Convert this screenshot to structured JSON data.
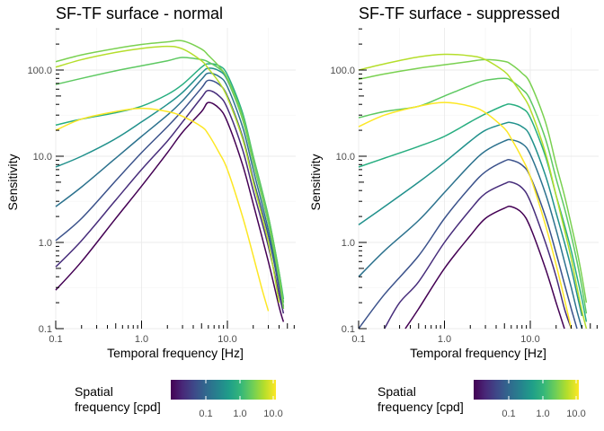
{
  "chart_data": [
    {
      "type": "line",
      "title": "SF-TF surface - normal",
      "xlabel": "Temporal frequency [Hz]",
      "ylabel": "Sensitivity",
      "x_scale": "log",
      "y_scale": "log",
      "xlim": [
        0.1,
        60
      ],
      "ylim": [
        0.1,
        320
      ],
      "x_ticks": [
        "0.1",
        "1.0",
        "10.0"
      ],
      "y_ticks": [
        "0.1",
        "1.0",
        "10.0",
        "100.0"
      ],
      "grid": true,
      "series": [
        {
          "spatial_frequency_cpd": 0.02,
          "color": "#440154",
          "x": [
            0.1,
            0.2,
            0.5,
            1,
            2,
            3,
            5,
            6,
            8,
            10,
            15,
            20,
            30,
            40,
            45
          ],
          "y": [
            0.28,
            0.6,
            1.9,
            4.5,
            11,
            19,
            33,
            42,
            36,
            25,
            8,
            2.8,
            0.6,
            0.18,
            0.12
          ]
        },
        {
          "spatial_frequency_cpd": 0.04,
          "color": "#472d7b",
          "x": [
            0.1,
            0.2,
            0.5,
            1,
            2,
            3,
            5,
            6,
            8,
            10,
            15,
            20,
            30,
            40,
            45
          ],
          "y": [
            0.52,
            1.05,
            3.1,
            7,
            15,
            25,
            48,
            58,
            50,
            36,
            12,
            4,
            0.9,
            0.25,
            0.15
          ]
        },
        {
          "spatial_frequency_cpd": 0.07,
          "color": "#3b528b",
          "x": [
            0.1,
            0.2,
            0.5,
            1,
            2,
            3,
            5,
            6,
            8,
            10,
            15,
            20,
            30,
            40,
            45
          ],
          "y": [
            1.05,
            1.9,
            5.2,
            11,
            22,
            34,
            62,
            76,
            68,
            50,
            17,
            5.5,
            1.2,
            0.3,
            0.17
          ]
        },
        {
          "spatial_frequency_cpd": 0.13,
          "color": "#2c728e",
          "x": [
            0.1,
            0.2,
            0.5,
            1,
            2,
            3,
            5,
            6,
            8,
            10,
            15,
            20,
            30,
            40,
            45
          ],
          "y": [
            2.6,
            4.4,
            9.5,
            17,
            30,
            44,
            78,
            92,
            84,
            64,
            22,
            7,
            1.4,
            0.35,
            0.18
          ]
        },
        {
          "spatial_frequency_cpd": 0.25,
          "color": "#21918c",
          "x": [
            0.1,
            0.2,
            0.5,
            1,
            2,
            3,
            5,
            6,
            8,
            10,
            15,
            20,
            30,
            40,
            45
          ],
          "y": [
            7.5,
            10,
            16,
            25,
            40,
            55,
            92,
            105,
            98,
            76,
            27,
            8.5,
            1.7,
            0.4,
            0.2
          ]
        },
        {
          "spatial_frequency_cpd": 0.5,
          "color": "#28ae80",
          "x": [
            0.1,
            0.2,
            0.5,
            1,
            2,
            3,
            5,
            6,
            8,
            10,
            15,
            20,
            30,
            40,
            45
          ],
          "y": [
            23,
            27,
            32,
            38,
            52,
            68,
            108,
            118,
            112,
            88,
            32,
            10,
            2,
            0.45,
            0.22
          ]
        },
        {
          "spatial_frequency_cpd": 1,
          "color": "#5ec962",
          "x": [
            0.1,
            0.2,
            0.5,
            1,
            2,
            3,
            5,
            6,
            8,
            10,
            15,
            20,
            30,
            40,
            45
          ],
          "y": [
            68,
            80,
            98,
            112,
            128,
            140,
            132,
            124,
            104,
            80,
            30,
            10,
            2,
            0.45,
            0.2
          ]
        },
        {
          "spatial_frequency_cpd": 2,
          "color": "#7ad151",
          "x": [
            0.1,
            0.2,
            0.5,
            1,
            2,
            3,
            5,
            6,
            8,
            10,
            15,
            20,
            30,
            40,
            45
          ],
          "y": [
            125,
            150,
            178,
            198,
            212,
            218,
            175,
            148,
            110,
            78,
            27,
            8.5,
            1.7,
            0.38,
            0.17
          ]
        },
        {
          "spatial_frequency_cpd": 4,
          "color": "#b5de2b",
          "x": [
            0.1,
            0.2,
            0.5,
            1,
            2,
            3,
            5,
            6,
            8,
            10,
            15,
            20,
            30,
            40
          ],
          "y": [
            108,
            132,
            160,
            178,
            188,
            176,
            128,
            104,
            72,
            48,
            16,
            5,
            1,
            0.2
          ]
        },
        {
          "spatial_frequency_cpd": 8,
          "color": "#fde725",
          "x": [
            0.1,
            0.2,
            0.5,
            1,
            2,
            3,
            5,
            6,
            8,
            10,
            15,
            20,
            25,
            30
          ],
          "y": [
            20,
            27,
            33,
            36,
            33,
            29,
            22,
            18,
            11,
            7,
            2,
            0.7,
            0.3,
            0.16
          ]
        }
      ]
    },
    {
      "type": "line",
      "title": "SF-TF surface - suppressed",
      "xlabel": "Temporal frequency [Hz]",
      "ylabel": "Sensitivity",
      "x_scale": "log",
      "y_scale": "log",
      "xlim": [
        0.1,
        60
      ],
      "ylim": [
        0.1,
        320
      ],
      "x_ticks": [
        "0.1",
        "1.0",
        "10.0"
      ],
      "y_ticks": [
        "0.1",
        "1.0",
        "10.0",
        "100.0"
      ],
      "grid": true,
      "series": [
        {
          "spatial_frequency_cpd": 0.02,
          "color": "#440154",
          "x": [
            0.35,
            0.5,
            1,
            2,
            3,
            5,
            6,
            8,
            10,
            15,
            20,
            25
          ],
          "y": [
            0.1,
            0.17,
            0.5,
            1.2,
            1.9,
            2.5,
            2.6,
            2.2,
            1.5,
            0.5,
            0.2,
            0.1
          ]
        },
        {
          "spatial_frequency_cpd": 0.04,
          "color": "#472d7b",
          "x": [
            0.2,
            0.3,
            0.5,
            1,
            2,
            3,
            5,
            6,
            8,
            10,
            15,
            20,
            25,
            30
          ],
          "y": [
            0.1,
            0.2,
            0.35,
            1,
            2.4,
            3.7,
            4.8,
            5,
            4.3,
            3,
            1,
            0.4,
            0.17,
            0.1
          ]
        },
        {
          "spatial_frequency_cpd": 0.07,
          "color": "#3b528b",
          "x": [
            0.1,
            0.2,
            0.5,
            1,
            2,
            3,
            5,
            6,
            8,
            10,
            15,
            20,
            25,
            30,
            35
          ],
          "y": [
            0.1,
            0.25,
            0.7,
            1.9,
            4.4,
            6.6,
            8.8,
            9,
            7.9,
            5.8,
            2,
            0.75,
            0.33,
            0.17,
            0.1
          ]
        },
        {
          "spatial_frequency_cpd": 0.13,
          "color": "#2c728e",
          "x": [
            0.1,
            0.2,
            0.5,
            1,
            2,
            3,
            5,
            6,
            8,
            10,
            15,
            20,
            25,
            30,
            35,
            40
          ],
          "y": [
            0.4,
            0.8,
            1.8,
            3.8,
            8,
            11.5,
            15,
            15.5,
            14,
            10.5,
            3.7,
            1.4,
            0.6,
            0.3,
            0.16,
            0.1
          ]
        },
        {
          "spatial_frequency_cpd": 0.25,
          "color": "#21918c",
          "x": [
            0.1,
            0.2,
            0.5,
            1,
            2,
            3,
            5,
            6,
            8,
            10,
            15,
            20,
            25,
            30,
            35,
            40
          ],
          "y": [
            1.6,
            2.6,
            5,
            8.5,
            15,
            20,
            24,
            24.5,
            22,
            17,
            6,
            2.2,
            1,
            0.5,
            0.25,
            0.14
          ]
        },
        {
          "spatial_frequency_cpd": 0.5,
          "color": "#28ae80",
          "x": [
            0.1,
            0.2,
            0.5,
            1,
            2,
            3,
            5,
            6,
            8,
            10,
            15,
            20,
            25,
            30,
            35,
            40,
            45
          ],
          "y": [
            7.5,
            9.5,
            13,
            17,
            25,
            31,
            39,
            40,
            36,
            28,
            10,
            3.5,
            1.6,
            0.8,
            0.4,
            0.22,
            0.12
          ]
        },
        {
          "spatial_frequency_cpd": 1,
          "color": "#5ec962",
          "x": [
            0.1,
            0.2,
            0.5,
            1,
            2,
            3,
            5,
            6,
            8,
            10,
            15,
            20,
            25,
            30,
            35,
            40,
            45
          ],
          "y": [
            28,
            33,
            38,
            50,
            66,
            76,
            80,
            75,
            60,
            45,
            16,
            5.5,
            2.5,
            1.2,
            0.6,
            0.3,
            0.15
          ]
        },
        {
          "spatial_frequency_cpd": 2,
          "color": "#7ad151",
          "x": [
            0.1,
            0.2,
            0.5,
            1,
            2,
            3,
            5,
            6,
            8,
            10,
            15,
            20,
            25,
            30,
            35,
            40,
            45
          ],
          "y": [
            78,
            90,
            105,
            115,
            126,
            132,
            126,
            116,
            92,
            70,
            25,
            8,
            3.5,
            1.6,
            0.8,
            0.4,
            0.2
          ]
        },
        {
          "spatial_frequency_cpd": 4,
          "color": "#b5de2b",
          "x": [
            0.1,
            0.2,
            0.5,
            1,
            2,
            3,
            5,
            6,
            8,
            10,
            15,
            20,
            25,
            30,
            35,
            40,
            45
          ],
          "y": [
            100,
            118,
            142,
            152,
            146,
            132,
            96,
            78,
            52,
            35,
            11,
            3.5,
            1.4,
            0.65,
            0.3,
            0.16,
            0.1
          ]
        },
        {
          "spatial_frequency_cpd": 8,
          "color": "#fde725",
          "x": [
            0.1,
            0.2,
            0.5,
            1,
            2,
            3,
            5,
            6,
            8,
            10,
            15,
            20,
            25,
            30
          ],
          "y": [
            22,
            30,
            38,
            42,
            38,
            32,
            21,
            16,
            9.5,
            5.8,
            1.6,
            0.55,
            0.22,
            0.1
          ]
        }
      ]
    }
  ],
  "legend": {
    "title_line1": "Spatial",
    "title_line2": "frequency [cpd]",
    "labels": [
      "0.1",
      "1.0",
      "10.0"
    ],
    "gradient_colors": [
      "#440154",
      "#482878",
      "#3e4989",
      "#31688e",
      "#26828e",
      "#1f9e89",
      "#35b779",
      "#6ece58",
      "#b5de2b",
      "#fde725"
    ]
  }
}
